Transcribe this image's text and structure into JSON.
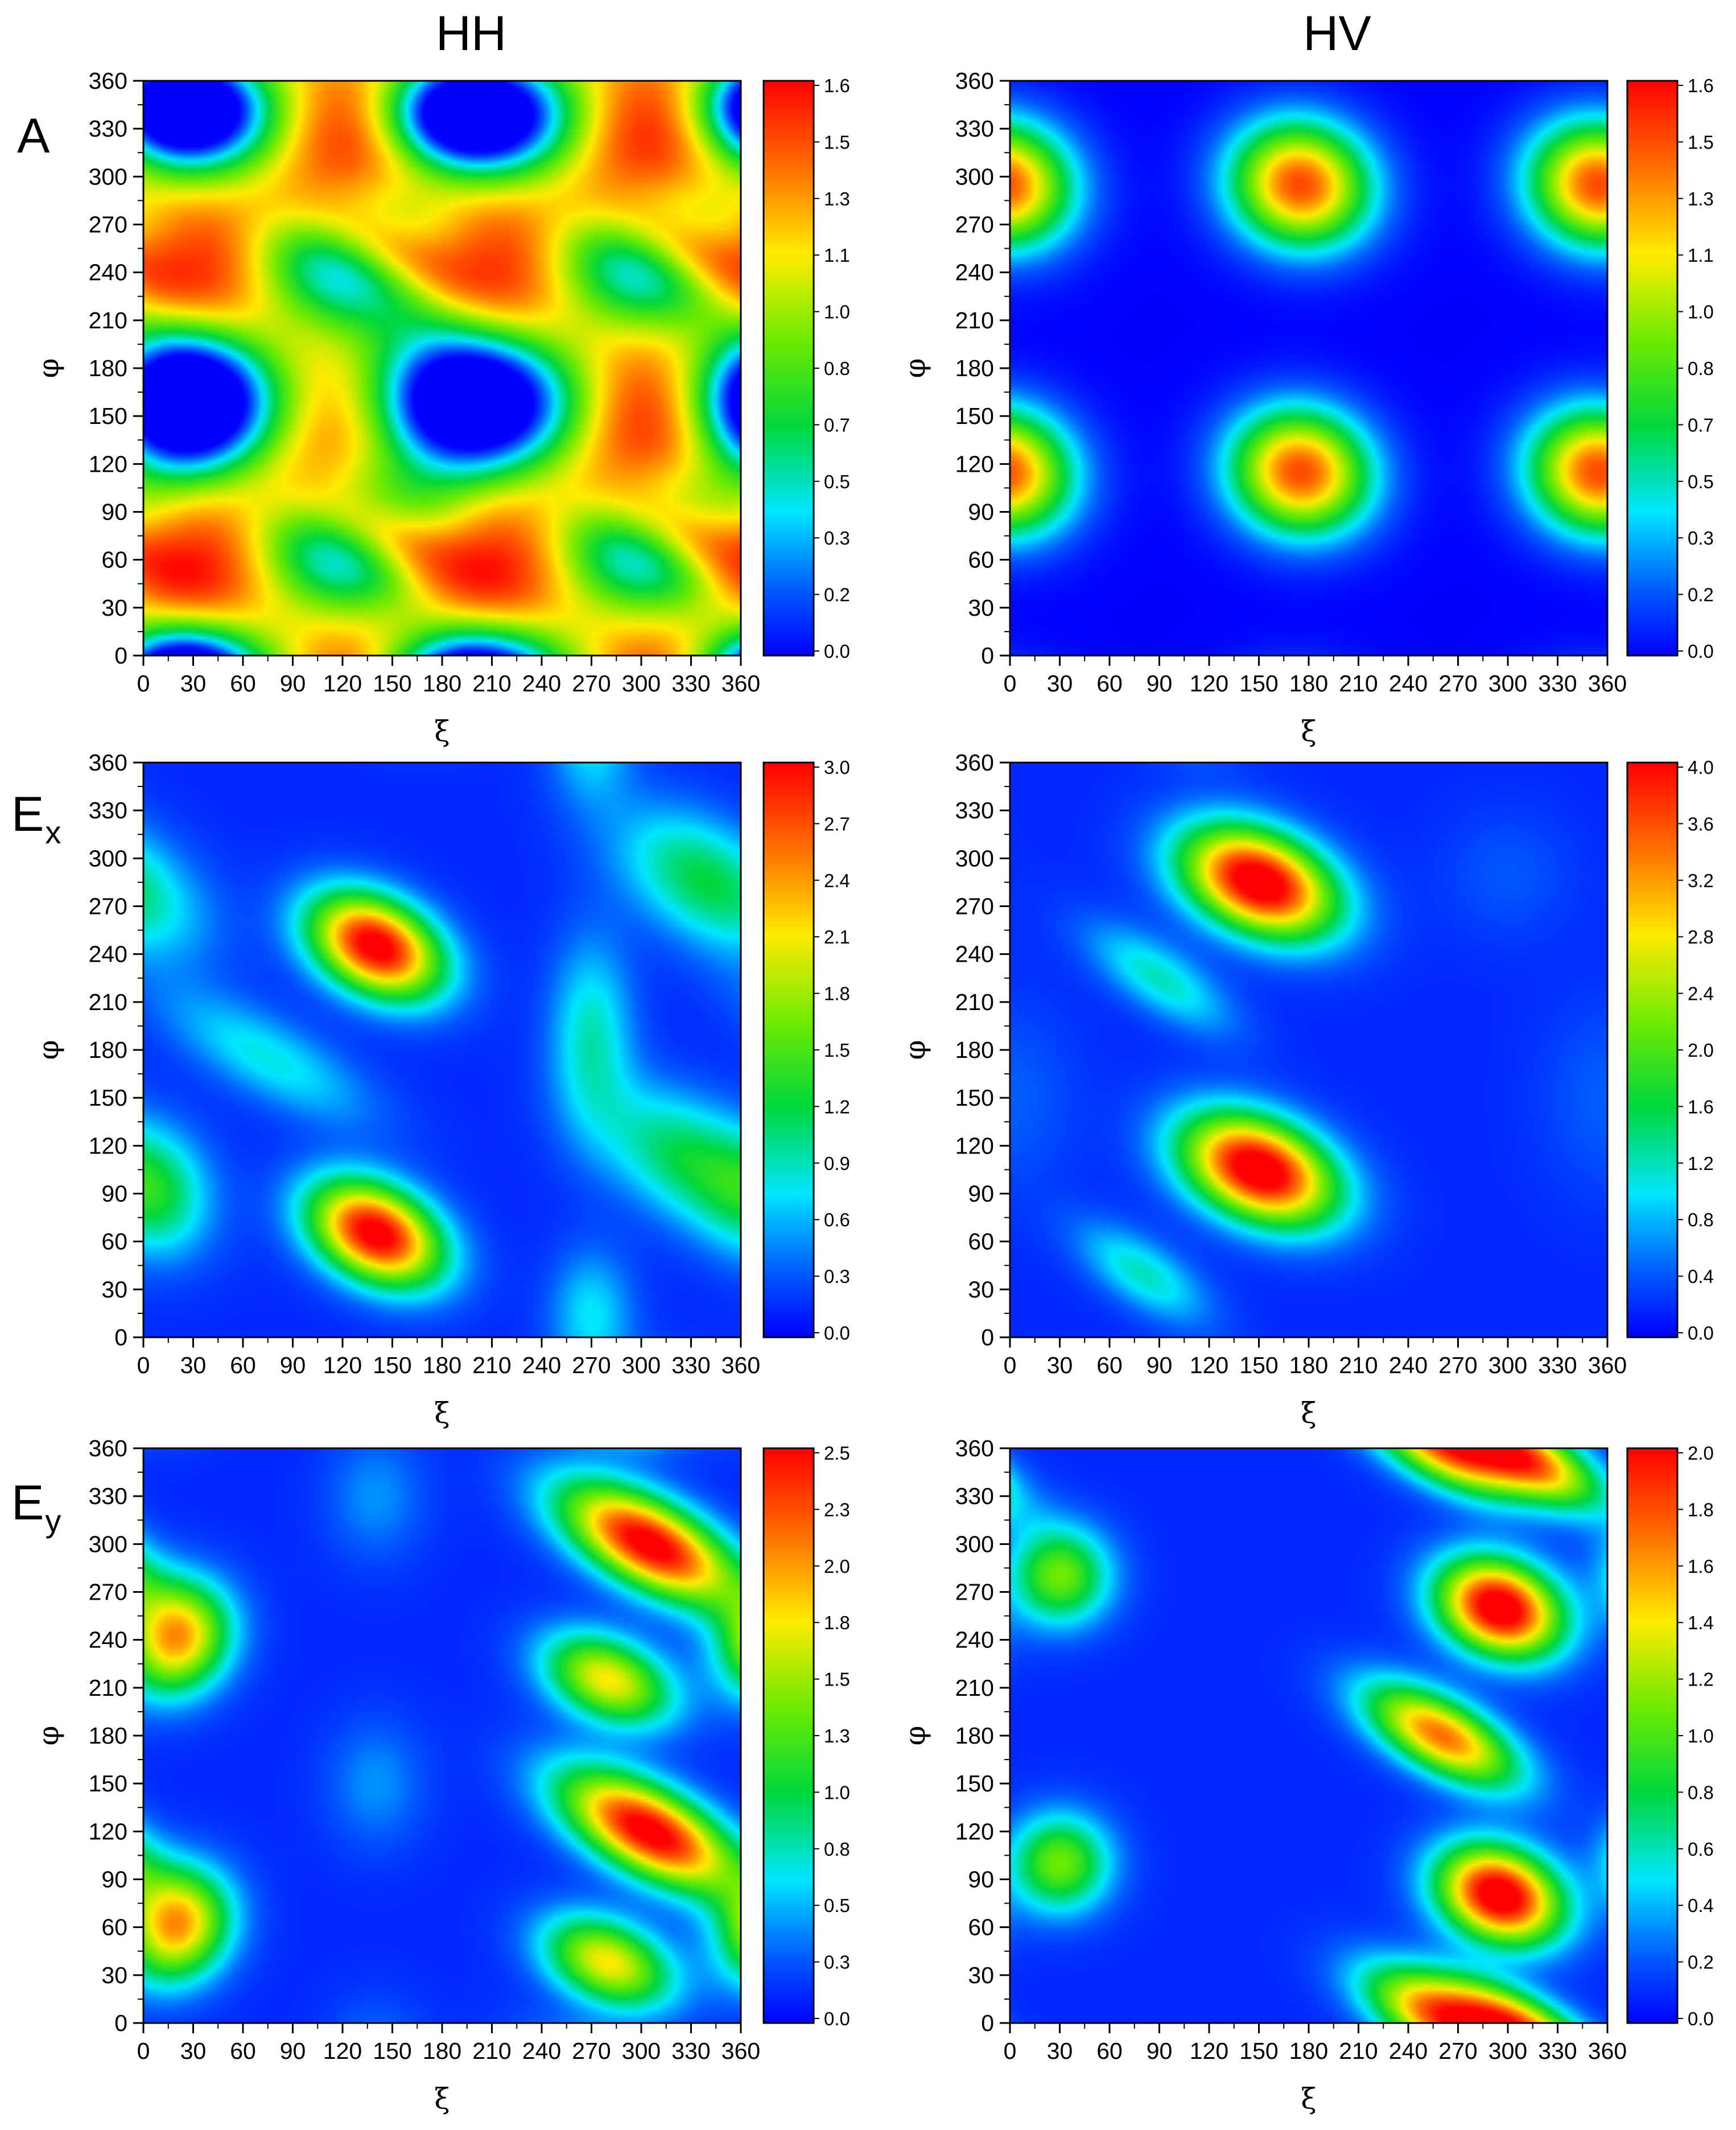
{
  "column_labels": [
    "HH",
    "HV"
  ],
  "row_labels": [
    {
      "main": "A",
      "sub": ""
    },
    {
      "main": "E",
      "sub": "x"
    },
    {
      "main": "E",
      "sub": "y"
    }
  ],
  "chart_data": [
    {
      "type": "heatmap",
      "row": 0,
      "col": 0,
      "pattern": "A_HH",
      "xlabel": "ξ",
      "ylabel": "φ",
      "xlim": [
        0,
        360
      ],
      "ylim": [
        0,
        360
      ],
      "xticks": [
        0,
        30,
        60,
        90,
        120,
        150,
        180,
        210,
        240,
        270,
        300,
        330,
        360
      ],
      "yticks": [
        0,
        30,
        60,
        90,
        120,
        150,
        180,
        210,
        240,
        270,
        300,
        330,
        360
      ],
      "vmin": 0,
      "vmax": 1.62,
      "colorbar_ticks": [
        "0.0",
        "0.2",
        "0.3",
        "0.5",
        "0.7",
        "0.8",
        "1.0",
        "1.1",
        "1.3",
        "1.5",
        "1.6"
      ],
      "peaks": [
        {
          "xi": 145,
          "phi": 255,
          "value": 1.6
        },
        {
          "xi": 325,
          "phi": 255,
          "value": 1.6
        },
        {
          "xi": 145,
          "phi": 75,
          "value": 1.6
        },
        {
          "xi": 325,
          "phi": 75,
          "value": 1.6
        }
      ],
      "minima": [
        {
          "xi": 20,
          "phi": 160,
          "value": 0.0
        },
        {
          "xi": 170,
          "phi": 160,
          "value": 0.0
        },
        {
          "xi": 20,
          "phi": 340,
          "value": 0.0
        },
        {
          "xi": 190,
          "phi": 335,
          "value": 0.0
        }
      ]
    },
    {
      "type": "heatmap",
      "row": 0,
      "col": 1,
      "pattern": "A_HV",
      "xlabel": "ξ",
      "ylabel": "φ",
      "xlim": [
        0,
        360
      ],
      "ylim": [
        0,
        360
      ],
      "xticks": [
        0,
        30,
        60,
        90,
        120,
        150,
        180,
        210,
        240,
        270,
        300,
        330,
        360
      ],
      "yticks": [
        0,
        30,
        60,
        90,
        120,
        150,
        180,
        210,
        240,
        270,
        300,
        330,
        360
      ],
      "vmin": 0,
      "vmax": 1.62,
      "colorbar_ticks": [
        "0.0",
        "0.2",
        "0.3",
        "0.5",
        "0.7",
        "0.8",
        "1.0",
        "1.1",
        "1.3",
        "1.5",
        "1.6"
      ],
      "peaks": [
        {
          "xi": 175,
          "phi": 295,
          "value": 1.45
        },
        {
          "xi": 175,
          "phi": 115,
          "value": 1.4
        },
        {
          "xi": 355,
          "phi": 295,
          "value": 1.45
        },
        {
          "xi": 355,
          "phi": 115,
          "value": 1.4
        }
      ]
    },
    {
      "type": "heatmap",
      "row": 1,
      "col": 0,
      "pattern": "Ex_HH",
      "xlabel": "ξ",
      "ylabel": "φ",
      "xlim": [
        0,
        360
      ],
      "ylim": [
        0,
        360
      ],
      "xticks": [
        0,
        30,
        60,
        90,
        120,
        150,
        180,
        210,
        240,
        270,
        300,
        330,
        360
      ],
      "yticks": [
        0,
        30,
        60,
        90,
        120,
        150,
        180,
        210,
        240,
        270,
        300,
        330,
        360
      ],
      "vmin": 0,
      "vmax": 3.05,
      "colorbar_ticks": [
        "0.0",
        "0.3",
        "0.6",
        "0.9",
        "1.2",
        "1.5",
        "1.8",
        "2.1",
        "2.4",
        "2.7",
        "3.0"
      ],
      "peaks": [
        {
          "xi": 140,
          "phi": 245,
          "value": 3.0
        },
        {
          "xi": 140,
          "phi": 65,
          "value": 3.0
        },
        {
          "xi": 340,
          "phi": 280,
          "value": 1.1
        },
        {
          "xi": 340,
          "phi": 110,
          "value": 1.1
        }
      ]
    },
    {
      "type": "heatmap",
      "row": 1,
      "col": 1,
      "pattern": "Ex_HV",
      "xlabel": "ξ",
      "ylabel": "φ",
      "xlim": [
        0,
        360
      ],
      "ylim": [
        0,
        360
      ],
      "xticks": [
        0,
        30,
        60,
        90,
        120,
        150,
        180,
        210,
        240,
        270,
        300,
        330,
        360
      ],
      "yticks": [
        0,
        30,
        60,
        90,
        120,
        150,
        180,
        210,
        240,
        270,
        300,
        330,
        360
      ],
      "vmin": 0,
      "vmax": 4.05,
      "colorbar_ticks": [
        "0.0",
        "0.4",
        "0.8",
        "1.2",
        "1.6",
        "2.0",
        "2.4",
        "2.8",
        "3.2",
        "3.6",
        "4.0"
      ],
      "peaks": [
        {
          "xi": 150,
          "phi": 285,
          "value": 4.0
        },
        {
          "xi": 150,
          "phi": 105,
          "value": 4.0
        },
        {
          "xi": 90,
          "phi": 220,
          "value": 1.0
        },
        {
          "xi": 80,
          "phi": 40,
          "value": 1.0
        }
      ]
    },
    {
      "type": "heatmap",
      "row": 2,
      "col": 0,
      "pattern": "Ey_HH",
      "xlabel": "ξ",
      "ylabel": "φ",
      "xlim": [
        0,
        360
      ],
      "ylim": [
        0,
        360
      ],
      "xticks": [
        0,
        30,
        60,
        90,
        120,
        150,
        180,
        210,
        240,
        270,
        300,
        330,
        360
      ],
      "yticks": [
        0,
        30,
        60,
        90,
        120,
        150,
        180,
        210,
        240,
        270,
        300,
        330,
        360
      ],
      "vmin": 0,
      "vmax": 2.52,
      "colorbar_ticks": [
        "0.0",
        "0.3",
        "0.5",
        "0.8",
        "1.0",
        "1.3",
        "1.5",
        "1.8",
        "2.0",
        "2.3",
        "2.5"
      ],
      "peaks": [
        {
          "xi": 305,
          "phi": 300,
          "value": 2.5
        },
        {
          "xi": 305,
          "phi": 120,
          "value": 2.5
        },
        {
          "xi": 280,
          "phi": 215,
          "value": 1.6
        },
        {
          "xi": 280,
          "phi": 40,
          "value": 1.6
        },
        {
          "xi": 20,
          "phi": 240,
          "value": 1.8
        },
        {
          "xi": 20,
          "phi": 60,
          "value": 1.8
        }
      ]
    },
    {
      "type": "heatmap",
      "row": 2,
      "col": 1,
      "pattern": "Ey_HV",
      "xlabel": "ξ",
      "ylabel": "φ",
      "xlim": [
        0,
        360
      ],
      "ylim": [
        0,
        360
      ],
      "xticks": [
        0,
        30,
        60,
        90,
        120,
        150,
        180,
        210,
        240,
        270,
        300,
        330,
        360
      ],
      "yticks": [
        0,
        30,
        60,
        90,
        120,
        150,
        180,
        210,
        240,
        270,
        300,
        330,
        360
      ],
      "vmin": 0,
      "vmax": 2.02,
      "colorbar_ticks": [
        "0.0",
        "0.2",
        "0.4",
        "0.6",
        "0.8",
        "1.0",
        "1.2",
        "1.4",
        "1.6",
        "1.8",
        "2.0"
      ],
      "peaks": [
        {
          "xi": 295,
          "phi": 260,
          "value": 2.0
        },
        {
          "xi": 295,
          "phi": 80,
          "value": 2.0
        },
        {
          "xi": 260,
          "phi": 180,
          "value": 1.6
        },
        {
          "xi": 260,
          "phi": 5,
          "value": 1.6
        },
        {
          "xi": 30,
          "phi": 280,
          "value": 1.0
        },
        {
          "xi": 30,
          "phi": 100,
          "value": 1.0
        }
      ]
    }
  ]
}
